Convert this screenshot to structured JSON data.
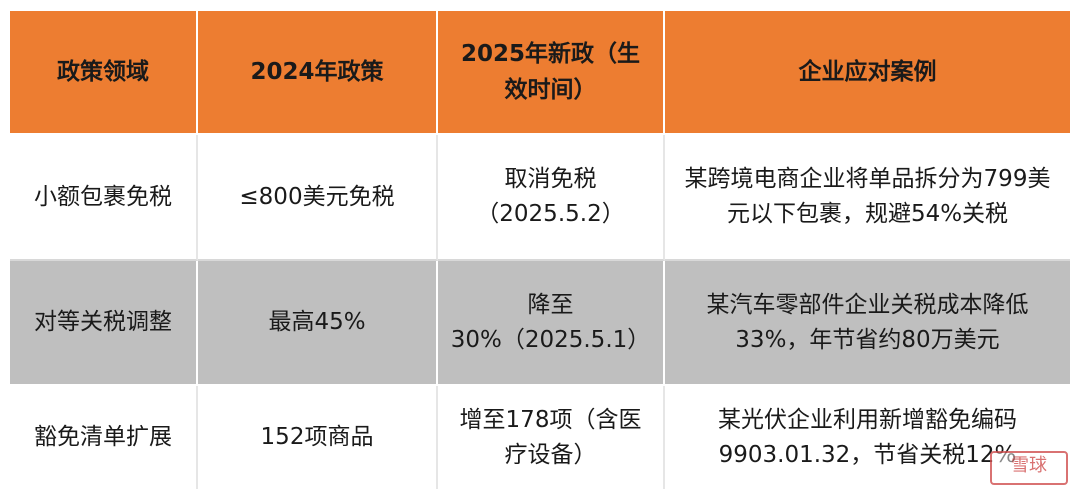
{
  "headers": [
    "政策领域",
    "2024年政策",
    "2025年新政（生效时间）",
    "企业应对案例"
  ],
  "rows": [
    [
      "小额包裹免税",
      "≤800美元免税",
      "取消免税（2025.5.2）",
      "某跨境电商企业将单品拆分为799美元以下包裹，规避54%关税"
    ],
    [
      "对等关税调整",
      "最高45%",
      "降至30%（2025.5.1）",
      "某汽车零部件企业关税成本降低33%，年节省约80万美元"
    ],
    [
      "豁免清单扩展",
      "152项商品",
      "增至178项（含医疗设备）",
      "某光伏企业利用新增豁免编码9903.01.32，节省关税12%"
    ]
  ],
  "watermark": "雪球"
}
